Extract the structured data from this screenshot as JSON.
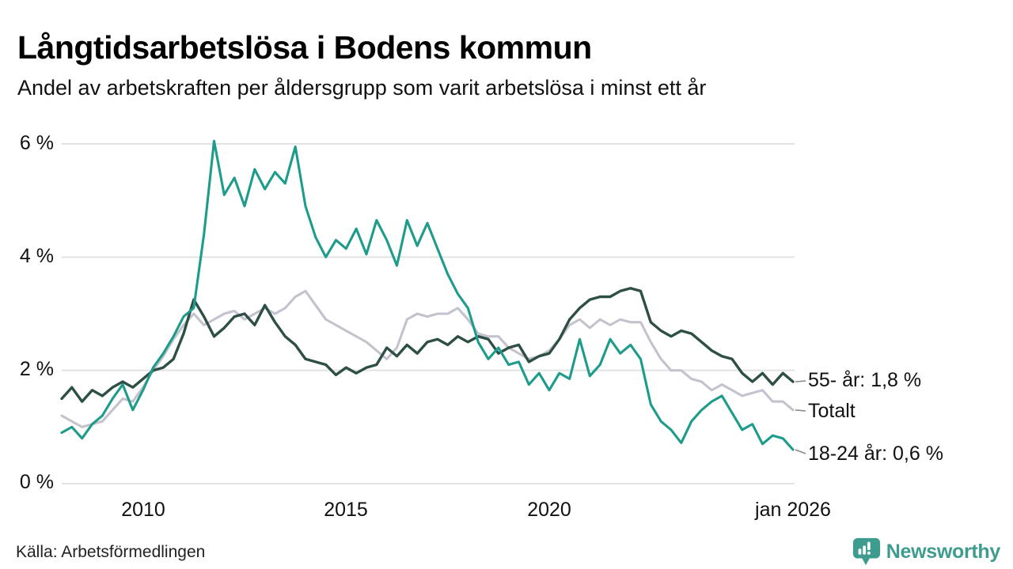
{
  "header": {
    "title": "Långtidsarbetslösa i Bodens kommun",
    "subtitle": "Andel av arbetskraften per åldersgrupp som varit arbetslösa i minst ett år"
  },
  "footer": {
    "source": "Källa: Arbetsförmedlingen",
    "brand": "Newsworthy"
  },
  "colors": {
    "teal_series": "#1d9b8b",
    "dark_green_series": "#2d4f45",
    "gray_series": "#c4c2cd",
    "gridline": "#e2e2e2",
    "connector": "#8a8a8a",
    "brand_teal": "#3e9c8e",
    "text": "#111111"
  },
  "chart_data": {
    "type": "line",
    "title": "Långtidsarbetslösa i Bodens kommun",
    "subtitle": "Andel av arbetskraften per åldersgrupp som varit arbetslösa i minst ett år",
    "unit": "% av arbetskraften",
    "x_start": 2008,
    "x_end": 2026,
    "x_step": 0.25,
    "ylim": [
      0,
      6.3
    ],
    "grid": true,
    "legend_position": "end-of-line-labels-right",
    "yticks": [
      {
        "value": 6,
        "label": "6 %"
      },
      {
        "value": 4,
        "label": "4 %"
      },
      {
        "value": 2,
        "label": "2 %"
      },
      {
        "value": 0,
        "label": "0 %"
      }
    ],
    "xticks": [
      {
        "value": 2010,
        "label": "2010"
      },
      {
        "value": 2015,
        "label": "2015"
      },
      {
        "value": 2020,
        "label": "2020"
      },
      {
        "value": 2026,
        "label": "jan 2026"
      }
    ],
    "series": [
      {
        "name": "Totalt",
        "label": "Totalt",
        "color": "#c4c2cd",
        "end_value": 1.3,
        "values": [
          1.2,
          1.1,
          1.0,
          1.05,
          1.1,
          1.3,
          1.5,
          1.45,
          1.7,
          2.0,
          2.25,
          2.55,
          2.8,
          3.0,
          2.8,
          2.9,
          3.0,
          3.05,
          2.9,
          3.0,
          3.1,
          3.0,
          3.1,
          3.3,
          3.4,
          3.15,
          2.9,
          2.8,
          2.7,
          2.6,
          2.5,
          2.35,
          2.2,
          2.4,
          2.9,
          3.0,
          2.95,
          3.0,
          3.0,
          3.1,
          2.9,
          2.65,
          2.6,
          2.6,
          2.4,
          2.3,
          2.2,
          2.25,
          2.35,
          2.55,
          2.8,
          2.9,
          2.75,
          2.9,
          2.8,
          2.9,
          2.85,
          2.85,
          2.5,
          2.2,
          2.0,
          2.0,
          1.85,
          1.8,
          1.65,
          1.75,
          1.65,
          1.55,
          1.6,
          1.65,
          1.45,
          1.45,
          1.3
        ]
      },
      {
        "name": "55- år",
        "label": "55- år: 1,8 %",
        "color": "#2d4f45",
        "end_value": 1.8,
        "values": [
          1.5,
          1.7,
          1.45,
          1.65,
          1.55,
          1.7,
          1.8,
          1.7,
          1.85,
          2.0,
          2.05,
          2.2,
          2.65,
          3.25,
          2.95,
          2.6,
          2.75,
          2.95,
          3.0,
          2.8,
          3.15,
          2.85,
          2.6,
          2.45,
          2.2,
          2.15,
          2.1,
          1.92,
          2.05,
          1.95,
          2.05,
          2.1,
          2.4,
          2.25,
          2.45,
          2.3,
          2.5,
          2.55,
          2.45,
          2.6,
          2.5,
          2.6,
          2.55,
          2.3,
          2.4,
          2.45,
          2.15,
          2.25,
          2.3,
          2.55,
          2.9,
          3.1,
          3.25,
          3.3,
          3.3,
          3.4,
          3.45,
          3.4,
          2.85,
          2.7,
          2.6,
          2.7,
          2.65,
          2.5,
          2.35,
          2.25,
          2.2,
          1.95,
          1.8,
          1.95,
          1.75,
          1.95,
          1.8
        ]
      },
      {
        "name": "18-24 år",
        "label": "18-24 år: 0,6 %",
        "color": "#1d9b8b",
        "end_value": 0.6,
        "values": [
          0.9,
          1.0,
          0.8,
          1.05,
          1.2,
          1.5,
          1.75,
          1.3,
          1.65,
          2.05,
          2.3,
          2.6,
          2.95,
          3.1,
          4.4,
          6.05,
          5.1,
          5.4,
          4.9,
          5.55,
          5.2,
          5.5,
          5.3,
          5.95,
          4.9,
          4.35,
          4.0,
          4.3,
          4.15,
          4.5,
          4.05,
          4.65,
          4.3,
          3.85,
          4.65,
          4.2,
          4.6,
          4.15,
          3.7,
          3.35,
          3.1,
          2.5,
          2.2,
          2.4,
          2.1,
          2.15,
          1.75,
          1.95,
          1.65,
          1.95,
          1.85,
          2.55,
          1.9,
          2.1,
          2.55,
          2.3,
          2.45,
          2.2,
          1.4,
          1.1,
          0.95,
          0.72,
          1.1,
          1.3,
          1.45,
          1.55,
          1.25,
          0.95,
          1.05,
          0.7,
          0.85,
          0.8,
          0.6
        ]
      }
    ]
  }
}
